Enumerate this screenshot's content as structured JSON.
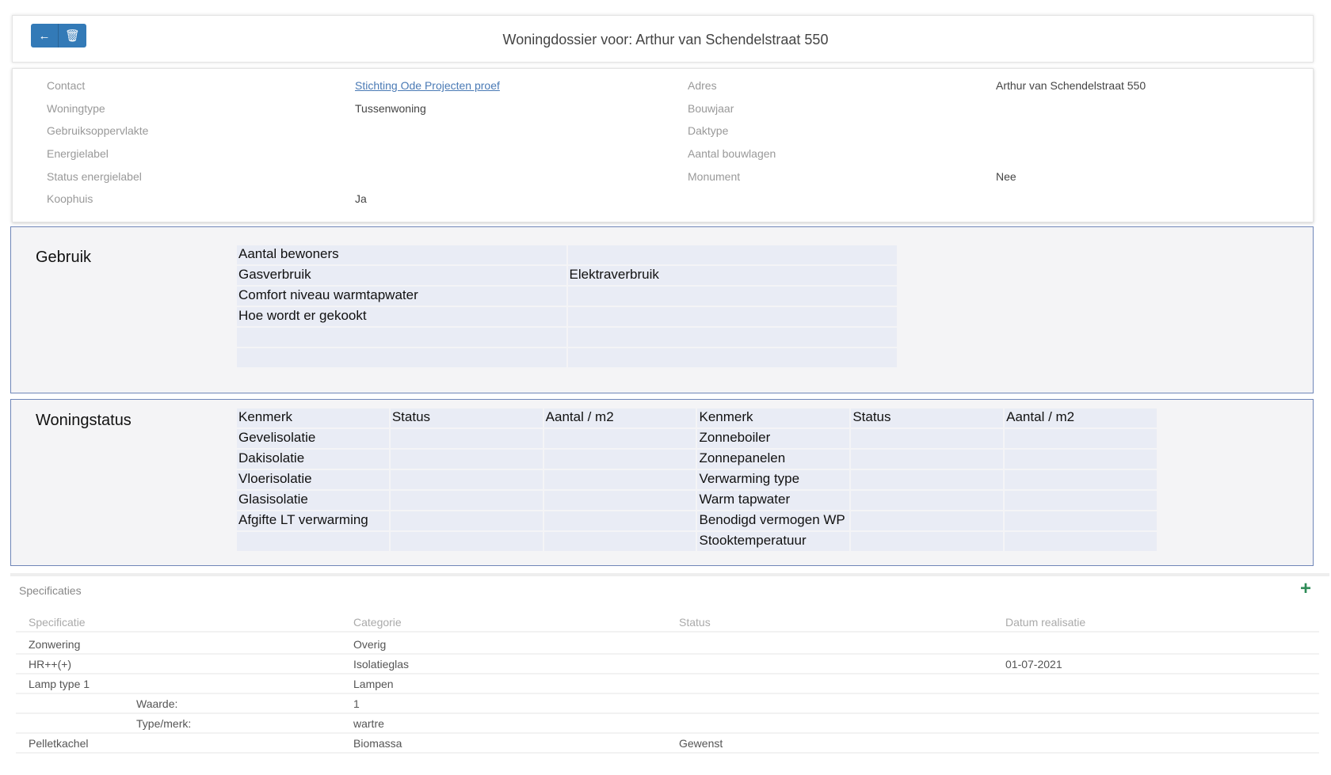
{
  "header": {
    "title": "Woningdossier voor: Arthur van Schendelstraat 550",
    "back_icon": "arrow-left-icon",
    "delete_icon": "trash-icon"
  },
  "info": {
    "left": [
      {
        "label": "Contact",
        "value": "Stichting Ode Projecten proef"
      },
      {
        "label": "Woningtype",
        "value": "Tussenwoning"
      },
      {
        "label": "Gebruiksoppervlakte",
        "value": ""
      },
      {
        "label": "Energielabel",
        "value": ""
      },
      {
        "label": "Status energielabel",
        "value": ""
      },
      {
        "label": "Koophuis",
        "value": "Ja"
      }
    ],
    "right": [
      {
        "label": "Adres",
        "value": "Arthur van Schendelstraat 550"
      },
      {
        "label": "Bouwjaar",
        "value": ""
      },
      {
        "label": "Daktype",
        "value": ""
      },
      {
        "label": "Aantal bouwlagen",
        "value": ""
      },
      {
        "label": "Monument",
        "value": "Nee"
      }
    ]
  },
  "gebruik": {
    "title": "Gebruik",
    "rows": [
      [
        "Aantal bewoners",
        ""
      ],
      [
        "Gasverbruik",
        "Elektraverbruik"
      ],
      [
        "Comfort niveau warmtapwater",
        ""
      ],
      [
        "Hoe wordt er gekookt",
        ""
      ],
      [
        "",
        ""
      ],
      [
        "",
        ""
      ]
    ]
  },
  "woningstatus": {
    "title": "Woningstatus",
    "headers": [
      "Kenmerk",
      "Status",
      "Aantal / m2",
      "Kenmerk",
      "Status",
      "Aantal / m2"
    ],
    "rows": [
      [
        "Gevelisolatie",
        "",
        "",
        "Zonneboiler",
        "",
        ""
      ],
      [
        "Dakisolatie",
        "",
        "",
        "Zonnepanelen",
        "",
        ""
      ],
      [
        "Vloerisolatie",
        "",
        "",
        "Verwarming type",
        "",
        ""
      ],
      [
        "Glasisolatie",
        "",
        "",
        "Warm tapwater",
        "",
        ""
      ],
      [
        "Afgifte LT verwarming",
        "",
        "",
        "Benodigd vermogen WP",
        "",
        ""
      ],
      [
        "",
        "",
        "",
        "Stooktemperatuur",
        "",
        ""
      ]
    ]
  },
  "specificaties": {
    "title": "Specificaties",
    "add_icon": "plus-icon",
    "accent": "#2e8b57",
    "headers": [
      "Specificatie",
      "Categorie",
      "Status",
      "Datum realisatie"
    ],
    "rows": [
      {
        "spec": "Zonwering",
        "sub": "",
        "categorie": "Overig",
        "status": "",
        "datum": ""
      },
      {
        "spec": "HR++(+)",
        "sub": "",
        "categorie": "Isolatieglas",
        "status": "",
        "datum": "01-07-2021"
      },
      {
        "spec": "Lamp type 1",
        "sub": "",
        "categorie": "Lampen",
        "status": "",
        "datum": ""
      },
      {
        "spec": "",
        "sub": "Waarde:",
        "categorie": "1",
        "status": "",
        "datum": ""
      },
      {
        "spec": "",
        "sub": "Type/merk:",
        "categorie": "wartre",
        "status": "",
        "datum": ""
      },
      {
        "spec": "Pelletkachel",
        "sub": "",
        "categorie": "Biomassa",
        "status": "Gewenst",
        "datum": ""
      }
    ]
  }
}
